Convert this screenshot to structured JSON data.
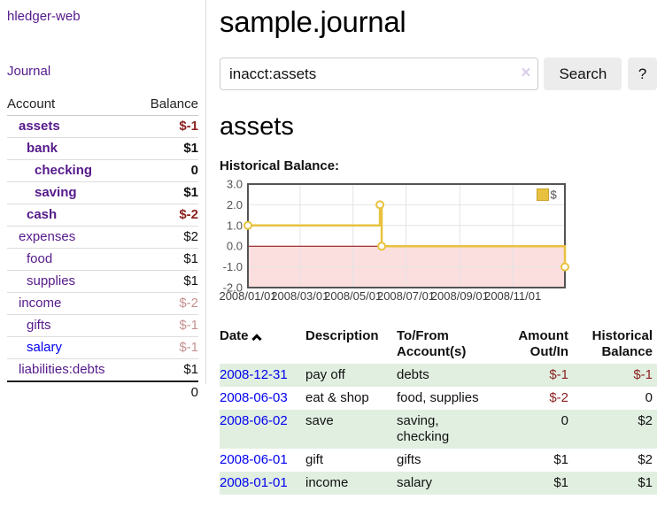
{
  "app": {
    "title": "hledger-web",
    "nav_journal": "Journal"
  },
  "sidebar": {
    "accounts_table": {
      "headers": {
        "account": "Account",
        "balance": "Balance"
      },
      "rows": [
        {
          "account": "assets",
          "indent": 1,
          "bold": true,
          "balance": "$-1",
          "balance_style": "neg"
        },
        {
          "account": "bank",
          "indent": 2,
          "bold": true,
          "balance": "$1",
          "balance_style": "pos"
        },
        {
          "account": "checking",
          "indent": 3,
          "bold": true,
          "balance": "0",
          "balance_style": "pos"
        },
        {
          "account": "saving",
          "indent": 3,
          "bold": true,
          "balance": "$1",
          "balance_style": "pos"
        },
        {
          "account": "cash",
          "indent": 2,
          "bold": true,
          "balance": "$-2",
          "balance_style": "neg"
        },
        {
          "account": "expenses",
          "indent": 1,
          "bold": false,
          "balance": "$2",
          "balance_style": "pos"
        },
        {
          "account": "food",
          "indent": 2,
          "bold": false,
          "balance": "$1",
          "balance_style": "pos"
        },
        {
          "account": "supplies",
          "indent": 2,
          "bold": false,
          "balance": "$1",
          "balance_style": "pos"
        },
        {
          "account": "income",
          "indent": 1,
          "bold": false,
          "balance": "$-2",
          "balance_style": "neg-faded"
        },
        {
          "account": "gifts",
          "indent": 2,
          "bold": false,
          "balance": "$-1",
          "balance_style": "neg-faded"
        },
        {
          "account": "salary",
          "indent": 2,
          "bold": false,
          "balance": "$-1",
          "balance_style": "neg-faded",
          "link_color": "blue"
        },
        {
          "account": "liabilities:debts",
          "indent": 1,
          "bold": false,
          "balance": "$1",
          "balance_style": "pos"
        }
      ],
      "total": "0"
    }
  },
  "header": {
    "title": "sample.journal"
  },
  "search": {
    "value": "inacct:assets",
    "clear_icon": "×",
    "button": "Search",
    "help_button": "?"
  },
  "account_page": {
    "title": "assets",
    "chart_label": "Historical Balance:"
  },
  "chart_data": {
    "type": "line",
    "title": "Historical Balance:",
    "legend": [
      {
        "label": "$",
        "color": "#E8C23F"
      }
    ],
    "legend_position": "top-right",
    "series": [
      {
        "name": "$",
        "step": true,
        "color": "#E8C23F",
        "points": [
          [
            "2008-01-01",
            1
          ],
          [
            "2008-06-01",
            2
          ],
          [
            "2008-06-03",
            0
          ],
          [
            "2008-12-31",
            -1
          ]
        ]
      }
    ],
    "x_range": [
      "2008-01-01",
      "2008-12-31"
    ],
    "x_ticks": [
      {
        "date": "2008-01-01",
        "label": "2008/01/01"
      },
      {
        "date": "2008-03-01",
        "label": "2008/03/01"
      },
      {
        "date": "2008-05-01",
        "label": "2008/05/01"
      },
      {
        "date": "2008-07-01",
        "label": "2008/07/01"
      },
      {
        "date": "2008-09-01",
        "label": "2008/09/01"
      },
      {
        "date": "2008-11-01",
        "label": "2008/11/01"
      }
    ],
    "y_ticks": [
      3.0,
      2.0,
      1.0,
      0.0,
      -1.0,
      -2.0
    ],
    "ylim": [
      -2,
      3
    ],
    "grid": true,
    "grid_color": "#e4e4e4",
    "border_color": "#545454",
    "zero_line_color": "#8B0000",
    "negative_region_color": "#fbdede",
    "tick_label_color": "#545454",
    "marker_fill": "#ffffff"
  },
  "register_table": {
    "headers": [
      "Date",
      "Description",
      "To/From Account(s)",
      "Amount Out/In",
      "Historical Balance"
    ],
    "sort_column": "Date",
    "sort_direction": "ascending",
    "rows": [
      {
        "date": "2008-12-31",
        "description": "pay off",
        "accounts": "debts",
        "amount": "$-1",
        "amount_neg": true,
        "balance": "$-1",
        "balance_neg": true,
        "green": true
      },
      {
        "date": "2008-06-03",
        "description": "eat & shop",
        "accounts": "food, supplies",
        "amount": "$-2",
        "amount_neg": true,
        "balance": "0",
        "balance_neg": false,
        "green": false
      },
      {
        "date": "2008-06-02",
        "description": "save",
        "accounts": "saving,\nchecking",
        "amount": "0",
        "amount_neg": false,
        "balance": "$2",
        "balance_neg": false,
        "green": true
      },
      {
        "date": "2008-06-01",
        "description": "gift",
        "accounts": "gifts",
        "amount": "$1",
        "amount_neg": false,
        "balance": "$2",
        "balance_neg": false,
        "green": false
      },
      {
        "date": "2008-01-01",
        "description": "income",
        "accounts": "salary",
        "amount": "$1",
        "amount_neg": false,
        "balance": "$1",
        "balance_neg": false,
        "green": true
      }
    ]
  }
}
